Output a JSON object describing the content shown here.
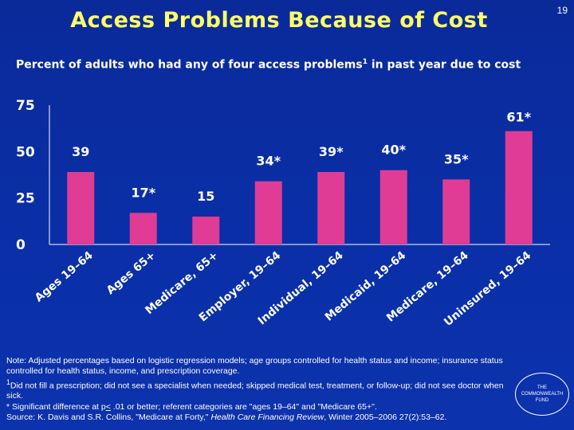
{
  "slide": {
    "title": "Access Problems Because of Cost",
    "number": "19",
    "subtitle_main": "Percent of adults who had any of four access problems",
    "subtitle_sup": "1",
    "subtitle_rest": " in past year due to cost"
  },
  "chart_data": {
    "type": "bar",
    "title": "",
    "xlabel": "",
    "ylabel": "",
    "ylim": [
      0,
      75
    ],
    "yticks": [
      "0",
      "25",
      "50",
      "75"
    ],
    "categories": [
      "Ages 19–64",
      "Ages 65+",
      "Medicare, 65+",
      "Employer, 19–64",
      "Individual, 19–64",
      "Medicaid, 19–64",
      "Medicare, 19–64",
      "Uninsured, 19–64"
    ],
    "values": [
      39,
      17,
      15,
      34,
      39,
      40,
      35,
      61
    ],
    "labels": [
      "39",
      "17*",
      "15",
      "34*",
      "39*",
      "40*",
      "35*",
      "61*"
    ],
    "bar_color": "#e03c96",
    "grid": false
  },
  "notes": {
    "line1": "Note: Adjusted percentages based on logistic regression models; age groups controlled for health status and income; insurance status controlled for health status, income, and prescription coverage.",
    "line2_sup": "1",
    "line2": "Did not fill a prescription; did not see a specialist when needed; skipped medical test, treatment, or follow-up; did not see doctor when sick.",
    "line3_pre": "* Significant difference at p",
    "line3_op": "<",
    "line3_post": " .01 or better; referent categories are \"ages 19–64\" and \"Medicare 65+\".",
    "source_pre": "Source: K. Davis and S.R. Collins, \"Medicare at Forty,\" ",
    "source_journal": "Health Care Financing Review",
    "source_post": ", Winter 2005–2006 27(2):53–62."
  },
  "logo": {
    "line1": "THE",
    "line2": "COMMONWEALTH",
    "line3": "FUND"
  }
}
